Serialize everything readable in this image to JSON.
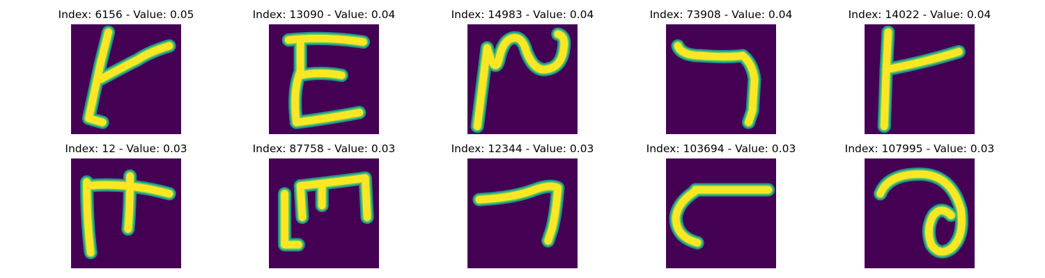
{
  "colors": {
    "background": "#440154",
    "stroke_outer": "#21918c",
    "stroke_mid": "#5ec962",
    "stroke_core": "#fde725"
  },
  "panels": [
    {
      "title": "Index: 6156 - Value: 0.05",
      "glyph_icon": "handwritten-glyph-t-hook-icon"
    },
    {
      "title": "Index: 13090 - Value: 0.04",
      "glyph_icon": "handwritten-glyph-e-icon"
    },
    {
      "title": "Index: 14983 - Value: 0.04",
      "glyph_icon": "handwritten-glyph-wave-icon"
    },
    {
      "title": "Index: 73908 - Value: 0.04",
      "glyph_icon": "handwritten-glyph-hook-icon"
    },
    {
      "title": "Index: 14022 - Value: 0.04",
      "glyph_icon": "handwritten-glyph-t-right-icon"
    },
    {
      "title": "Index: 12 - Value: 0.03",
      "glyph_icon": "handwritten-glyph-pi-icon"
    },
    {
      "title": "Index: 87758 - Value: 0.03",
      "glyph_icon": "handwritten-glyph-m-icon"
    },
    {
      "title": "Index: 12344 - Value: 0.03",
      "glyph_icon": "handwritten-glyph-seven-icon"
    },
    {
      "title": "Index: 103694 - Value: 0.03",
      "glyph_icon": "handwritten-glyph-c-bar-icon"
    },
    {
      "title": "Index: 107995 - Value: 0.03",
      "glyph_icon": "handwritten-glyph-loop-icon"
    }
  ]
}
